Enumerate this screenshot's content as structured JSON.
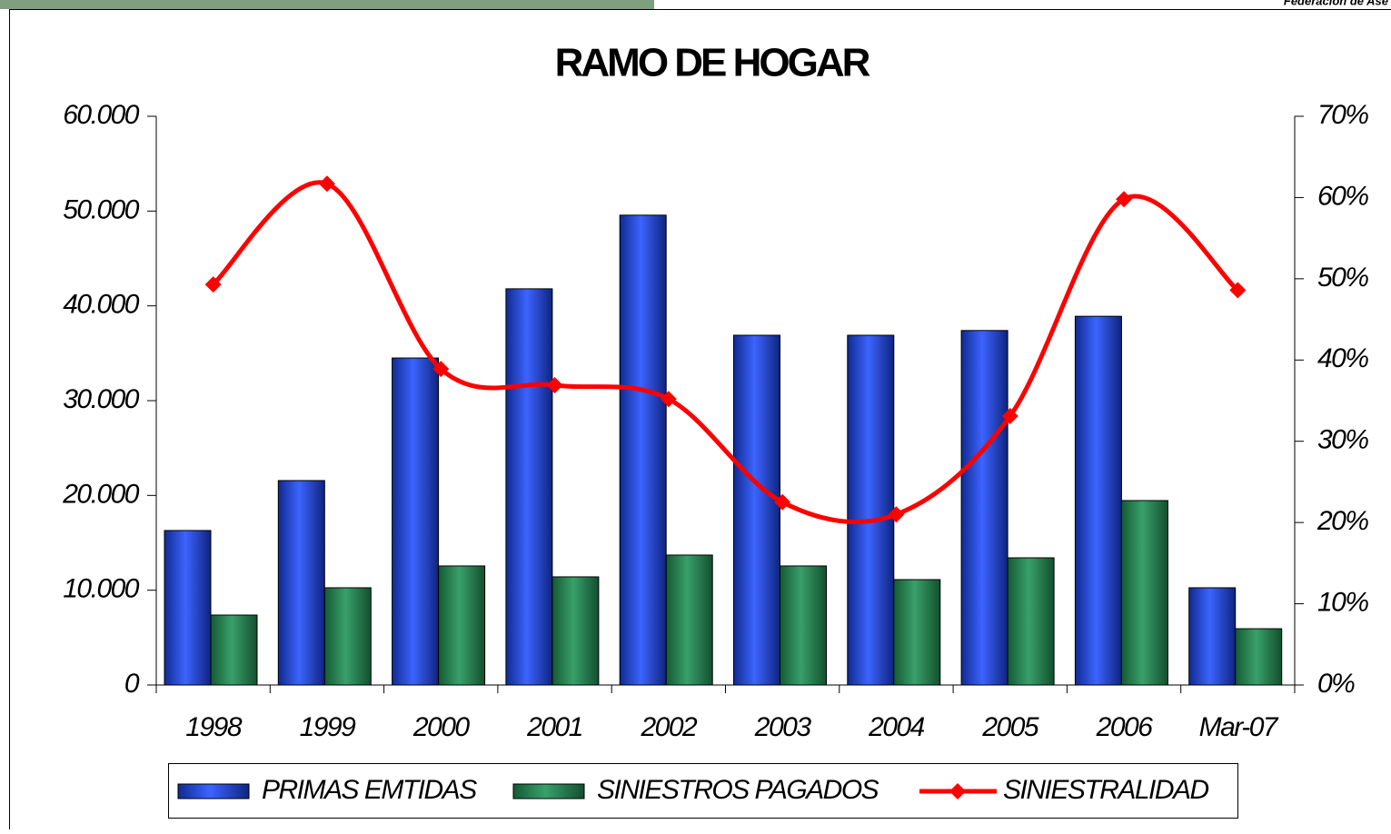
{
  "header": {
    "text": "Federación de Ase"
  },
  "chart_data": {
    "type": "bar",
    "title": "RAMO DE HOGAR",
    "categories": [
      "1998",
      "1999",
      "2000",
      "2001",
      "2002",
      "2003",
      "2004",
      "2005",
      "2006",
      "Mar-07"
    ],
    "series": [
      {
        "name": "PRIMAS EMTIDAS",
        "color": "#3052ee",
        "values": [
          16300,
          21570,
          34500,
          41800,
          49570,
          36900,
          36900,
          37400,
          38900,
          10260
        ]
      },
      {
        "name": "SINIESTROS PAGADOS",
        "color": "#2e8b5a",
        "values": [
          7380,
          10260,
          12560,
          11410,
          13710,
          12560,
          11120,
          13420,
          19460,
          5940
        ]
      },
      {
        "name": "SINIESTRALIDAD",
        "color": "#ff0000",
        "axis": "y2",
        "type": "line",
        "values": [
          49.3,
          61.7,
          38.9,
          36.9,
          35.2,
          22.5,
          21.0,
          33.1,
          59.8,
          48.6
        ]
      }
    ],
    "ylim": [
      0,
      60000
    ],
    "yticks": [
      0,
      {
        "value": 10000,
        "label": "10.000"
      },
      {
        "value": 20000,
        "label": "20.000"
      },
      {
        "value": 30000,
        "label": "30.000"
      },
      {
        "value": 40000,
        "label": "40.000"
      },
      {
        "value": 50000,
        "label": "50.000"
      },
      {
        "value": 60000,
        "label": "60.000"
      }
    ],
    "y2lim": [
      0,
      70
    ],
    "y2ticks": [
      {
        "value": 0,
        "label": "0%"
      },
      {
        "value": 10,
        "label": "10%"
      },
      {
        "value": 20,
        "label": "20%"
      },
      {
        "value": 30,
        "label": "30%"
      },
      {
        "value": 40,
        "label": "40%"
      },
      {
        "value": 50,
        "label": "50%"
      },
      {
        "value": 60,
        "label": "60%"
      },
      {
        "value": 70,
        "label": "70%"
      }
    ],
    "smooth": true,
    "legend": "bottom"
  }
}
